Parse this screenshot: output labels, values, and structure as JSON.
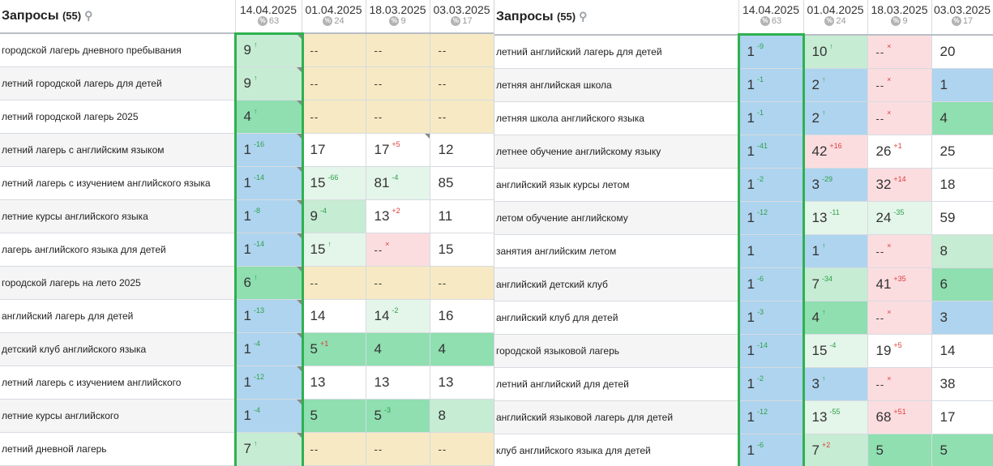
{
  "colors": {
    "blue": "#aed4ef",
    "light_green": "#c6ecd4",
    "green": "#8fdfb0",
    "mint": "#e4f5ea",
    "yellow": "#f6e9c4",
    "pink": "#fbdde0",
    "highlight": "#2eb14f"
  },
  "left": {
    "title": "Запросы",
    "count": "(55)",
    "dates": [
      {
        "date": "14.04.2025",
        "sub": "63"
      },
      {
        "date": "01.04.2025",
        "sub": "24"
      },
      {
        "date": "18.03.2025",
        "sub": "9"
      },
      {
        "date": "03.03.2025",
        "sub": "17"
      }
    ],
    "rows": [
      {
        "query": "городской лагерь дневного пребывания",
        "cells": [
          {
            "v": "9",
            "d": "↑",
            "dt": "up",
            "c": "c-lgreen",
            "k": 1
          },
          {
            "v": "--",
            "c": "c-yellow"
          },
          {
            "v": "--",
            "c": "c-yellow"
          },
          {
            "v": "--",
            "c": "c-yellow"
          }
        ]
      },
      {
        "query": "летний городской лагерь для детей",
        "cells": [
          {
            "v": "9",
            "d": "↑",
            "dt": "up",
            "c": "c-lgreen",
            "k": 1
          },
          {
            "v": "--",
            "c": "c-yellow"
          },
          {
            "v": "--",
            "c": "c-yellow"
          },
          {
            "v": "--",
            "c": "c-yellow"
          }
        ]
      },
      {
        "query": "летний городской лагерь 2025",
        "cells": [
          {
            "v": "4",
            "d": "↑",
            "dt": "up",
            "c": "c-green",
            "k": 1
          },
          {
            "v": "--",
            "c": "c-yellow"
          },
          {
            "v": "--",
            "c": "c-yellow"
          },
          {
            "v": "--",
            "c": "c-yellow"
          }
        ]
      },
      {
        "query": "летний лагерь с английским языком",
        "cells": [
          {
            "v": "1",
            "d": "-16",
            "dt": "up",
            "c": "c-blue",
            "k": 1
          },
          {
            "v": "17",
            "c": "c-white"
          },
          {
            "v": "17",
            "d": "+5",
            "dt": "down",
            "c": "c-white",
            "k": 1
          },
          {
            "v": "12",
            "c": "c-white"
          }
        ]
      },
      {
        "query": "летний лагерь с изучением английского языка",
        "cells": [
          {
            "v": "1",
            "d": "-14",
            "dt": "up",
            "c": "c-blue",
            "k": 1
          },
          {
            "v": "15",
            "d": "-66",
            "dt": "up",
            "c": "c-mint"
          },
          {
            "v": "81",
            "d": "-4",
            "dt": "up",
            "c": "c-mint"
          },
          {
            "v": "85",
            "c": "c-white"
          }
        ]
      },
      {
        "query": "летние курсы английского языка",
        "cells": [
          {
            "v": "1",
            "d": "-8",
            "dt": "up",
            "c": "c-blue",
            "k": 1
          },
          {
            "v": "9",
            "d": "-4",
            "dt": "up",
            "c": "c-lgreen"
          },
          {
            "v": "13",
            "d": "+2",
            "dt": "down",
            "c": "c-white"
          },
          {
            "v": "11",
            "c": "c-white"
          }
        ]
      },
      {
        "query": "лагерь английского языка для детей",
        "cells": [
          {
            "v": "1",
            "d": "-14",
            "dt": "up",
            "c": "c-blue",
            "k": 1
          },
          {
            "v": "15",
            "d": "↑",
            "dt": "up",
            "c": "c-mint"
          },
          {
            "v": "--",
            "d": "×",
            "dt": "x",
            "c": "c-pink"
          },
          {
            "v": "15",
            "c": "c-white"
          }
        ]
      },
      {
        "query": "городской лагерь на лето 2025",
        "cells": [
          {
            "v": "6",
            "d": "↑",
            "dt": "up",
            "c": "c-green",
            "k": 1
          },
          {
            "v": "--",
            "c": "c-yellow"
          },
          {
            "v": "--",
            "c": "c-yellow"
          },
          {
            "v": "--",
            "c": "c-yellow"
          }
        ]
      },
      {
        "query": "английский лагерь для детей",
        "cells": [
          {
            "v": "1",
            "d": "-13",
            "dt": "up",
            "c": "c-blue",
            "k": 1
          },
          {
            "v": "14",
            "c": "c-white"
          },
          {
            "v": "14",
            "d": "-2",
            "dt": "up",
            "c": "c-mint"
          },
          {
            "v": "16",
            "c": "c-white"
          }
        ]
      },
      {
        "query": "детский клуб английского языка",
        "cells": [
          {
            "v": "1",
            "d": "-4",
            "dt": "up",
            "c": "c-blue",
            "k": 1
          },
          {
            "v": "5",
            "d": "+1",
            "dt": "down",
            "c": "c-green"
          },
          {
            "v": "4",
            "c": "c-green"
          },
          {
            "v": "4",
            "c": "c-green"
          }
        ]
      },
      {
        "query": "летний лагерь с изучением английского",
        "cells": [
          {
            "v": "1",
            "d": "-12",
            "dt": "up",
            "c": "c-blue",
            "k": 1
          },
          {
            "v": "13",
            "c": "c-white"
          },
          {
            "v": "13",
            "c": "c-white"
          },
          {
            "v": "13",
            "c": "c-white"
          }
        ]
      },
      {
        "query": "летние курсы английского",
        "cells": [
          {
            "v": "1",
            "d": "-4",
            "dt": "up",
            "c": "c-blue",
            "k": 1
          },
          {
            "v": "5",
            "c": "c-green"
          },
          {
            "v": "5",
            "d": "-3",
            "dt": "up",
            "c": "c-green"
          },
          {
            "v": "8",
            "c": "c-lgreen"
          }
        ]
      },
      {
        "query": "летний дневной лагерь",
        "cells": [
          {
            "v": "7",
            "d": "↑",
            "dt": "up",
            "c": "c-lgreen",
            "k": 1
          },
          {
            "v": "--",
            "c": "c-yellow"
          },
          {
            "v": "--",
            "c": "c-yellow"
          },
          {
            "v": "--",
            "c": "c-yellow"
          }
        ]
      }
    ]
  },
  "right": {
    "title": "Запросы",
    "count": "(55)",
    "dates": [
      {
        "date": "14.04.2025",
        "sub": "63"
      },
      {
        "date": "01.04.2025",
        "sub": "24"
      },
      {
        "date": "18.03.2025",
        "sub": "9"
      },
      {
        "date": "03.03.2025",
        "sub": "17"
      }
    ],
    "rows": [
      {
        "query": "летний английский лагерь для детей",
        "cells": [
          {
            "v": "1",
            "d": "-9",
            "dt": "up",
            "c": "c-blue"
          },
          {
            "v": "10",
            "d": "↑",
            "dt": "up",
            "c": "c-lgreen"
          },
          {
            "v": "--",
            "d": "×",
            "dt": "x",
            "c": "c-pink"
          },
          {
            "v": "20",
            "c": "c-white"
          }
        ]
      },
      {
        "query": "летняя английская школа",
        "cells": [
          {
            "v": "1",
            "d": "-1",
            "dt": "up",
            "c": "c-blue"
          },
          {
            "v": "2",
            "d": "↑",
            "dt": "up",
            "c": "c-blue"
          },
          {
            "v": "--",
            "d": "×",
            "dt": "x",
            "c": "c-pink"
          },
          {
            "v": "1",
            "c": "c-blue"
          }
        ]
      },
      {
        "query": "летняя школа английского языка",
        "cells": [
          {
            "v": "1",
            "d": "-1",
            "dt": "up",
            "c": "c-blue"
          },
          {
            "v": "2",
            "d": "↑",
            "dt": "up",
            "c": "c-blue"
          },
          {
            "v": "--",
            "d": "×",
            "dt": "x",
            "c": "c-pink"
          },
          {
            "v": "4",
            "c": "c-green"
          }
        ]
      },
      {
        "query": "летнее обучение английскому языку",
        "cells": [
          {
            "v": "1",
            "d": "-41",
            "dt": "up",
            "c": "c-blue"
          },
          {
            "v": "42",
            "d": "+16",
            "dt": "down",
            "c": "c-pink"
          },
          {
            "v": "26",
            "d": "+1",
            "dt": "down",
            "c": "c-white"
          },
          {
            "v": "25",
            "c": "c-white"
          }
        ]
      },
      {
        "query": "английский язык курсы летом",
        "cells": [
          {
            "v": "1",
            "d": "-2",
            "dt": "up",
            "c": "c-blue"
          },
          {
            "v": "3",
            "d": "-29",
            "dt": "up",
            "c": "c-blue"
          },
          {
            "v": "32",
            "d": "+14",
            "dt": "down",
            "c": "c-pink"
          },
          {
            "v": "18",
            "c": "c-white"
          }
        ]
      },
      {
        "query": "летом обучение английскому",
        "cells": [
          {
            "v": "1",
            "d": "-12",
            "dt": "up",
            "c": "c-blue"
          },
          {
            "v": "13",
            "d": "-11",
            "dt": "up",
            "c": "c-mint"
          },
          {
            "v": "24",
            "d": "-35",
            "dt": "up",
            "c": "c-mint"
          },
          {
            "v": "59",
            "c": "c-white"
          }
        ]
      },
      {
        "query": "занятия английским летом",
        "cells": [
          {
            "v": "1",
            "c": "c-blue"
          },
          {
            "v": "1",
            "d": "↑",
            "dt": "up",
            "c": "c-blue"
          },
          {
            "v": "--",
            "d": "×",
            "dt": "x",
            "c": "c-pink"
          },
          {
            "v": "8",
            "c": "c-lgreen"
          }
        ]
      },
      {
        "query": "английский детский клуб",
        "cells": [
          {
            "v": "1",
            "d": "-6",
            "dt": "up",
            "c": "c-blue"
          },
          {
            "v": "7",
            "d": "-34",
            "dt": "up",
            "c": "c-lgreen"
          },
          {
            "v": "41",
            "d": "+35",
            "dt": "down",
            "c": "c-pink"
          },
          {
            "v": "6",
            "c": "c-green"
          }
        ]
      },
      {
        "query": "английский клуб для детей",
        "cells": [
          {
            "v": "1",
            "d": "-3",
            "dt": "up",
            "c": "c-blue"
          },
          {
            "v": "4",
            "d": "↑",
            "dt": "up",
            "c": "c-green"
          },
          {
            "v": "--",
            "d": "×",
            "dt": "x",
            "c": "c-pink"
          },
          {
            "v": "3",
            "c": "c-blue"
          }
        ]
      },
      {
        "query": "городской языковой лагерь",
        "cells": [
          {
            "v": "1",
            "d": "-14",
            "dt": "up",
            "c": "c-blue"
          },
          {
            "v": "15",
            "d": "-4",
            "dt": "up",
            "c": "c-mint"
          },
          {
            "v": "19",
            "d": "+5",
            "dt": "down",
            "c": "c-white"
          },
          {
            "v": "14",
            "c": "c-white"
          }
        ]
      },
      {
        "query": "летний английский для детей",
        "cells": [
          {
            "v": "1",
            "d": "-2",
            "dt": "up",
            "c": "c-blue"
          },
          {
            "v": "3",
            "d": "↑",
            "dt": "up",
            "c": "c-blue"
          },
          {
            "v": "--",
            "d": "×",
            "dt": "x",
            "c": "c-pink"
          },
          {
            "v": "38",
            "c": "c-white"
          }
        ]
      },
      {
        "query": "английский языковой лагерь для детей",
        "cells": [
          {
            "v": "1",
            "d": "-12",
            "dt": "up",
            "c": "c-blue"
          },
          {
            "v": "13",
            "d": "-55",
            "dt": "up",
            "c": "c-mint"
          },
          {
            "v": "68",
            "d": "+51",
            "dt": "down",
            "c": "c-pink"
          },
          {
            "v": "17",
            "c": "c-white"
          }
        ]
      },
      {
        "query": "клуб английского языка для детей",
        "cells": [
          {
            "v": "1",
            "d": "-6",
            "dt": "up",
            "c": "c-blue"
          },
          {
            "v": "7",
            "d": "+2",
            "dt": "down",
            "c": "c-lgreen"
          },
          {
            "v": "5",
            "c": "c-green"
          },
          {
            "v": "5",
            "c": "c-green"
          }
        ]
      }
    ]
  }
}
